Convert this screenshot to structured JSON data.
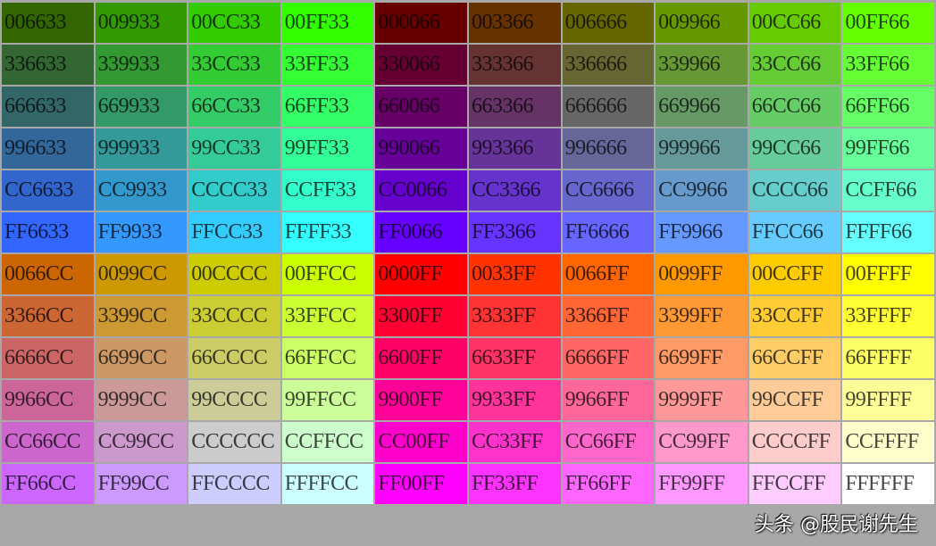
{
  "color_order_displayed": "BGR",
  "rows": [
    [
      "006633",
      "009933",
      "00CC33",
      "00FF33",
      "000066",
      "003366",
      "006666",
      "009966",
      "00CC66",
      "00FF66"
    ],
    [
      "336633",
      "339933",
      "33CC33",
      "33FF33",
      "330066",
      "333366",
      "336666",
      "339966",
      "33CC66",
      "33FF66"
    ],
    [
      "666633",
      "669933",
      "66CC33",
      "66FF33",
      "660066",
      "663366",
      "666666",
      "669966",
      "66CC66",
      "66FF66"
    ],
    [
      "996633",
      "999933",
      "99CC33",
      "99FF33",
      "990066",
      "993366",
      "996666",
      "999966",
      "99CC66",
      "99FF66"
    ],
    [
      "CC6633",
      "CC9933",
      "CCCC33",
      "CCFF33",
      "CC0066",
      "CC3366",
      "CC6666",
      "CC9966",
      "CCCC66",
      "CCFF66"
    ],
    [
      "FF6633",
      "FF9933",
      "FFCC33",
      "FFFF33",
      "FF0066",
      "FF3366",
      "FF6666",
      "FF9966",
      "FFCC66",
      "FFFF66"
    ],
    [
      "0066CC",
      "0099CC",
      "00CCCC",
      "00FFCC",
      "0000FF",
      "0033FF",
      "0066FF",
      "0099FF",
      "00CCFF",
      "00FFFF"
    ],
    [
      "3366CC",
      "3399CC",
      "33CCCC",
      "33FFCC",
      "3300FF",
      "3333FF",
      "3366FF",
      "3399FF",
      "33CCFF",
      "33FFFF"
    ],
    [
      "6666CC",
      "6699CC",
      "66CCCC",
      "66FFCC",
      "6600FF",
      "6633FF",
      "6666FF",
      "6699FF",
      "66CCFF",
      "66FFFF"
    ],
    [
      "9966CC",
      "9999CC",
      "99CCCC",
      "99FFCC",
      "9900FF",
      "9933FF",
      "9966FF",
      "9999FF",
      "99CCFF",
      "99FFFF"
    ],
    [
      "CC66CC",
      "CC99CC",
      "CCCCCC",
      "CCFFCC",
      "CC00FF",
      "CC33FF",
      "CC66FF",
      "CC99FF",
      "CCCCFF",
      "CCFFFF"
    ],
    [
      "FF66CC",
      "FF99CC",
      "FFCCCC",
      "FFFFCC",
      "FF00FF",
      "FF33FF",
      "FF66FF",
      "FF99FF",
      "FFCCFF",
      "FFFFFF"
    ]
  ],
  "watermark": "头条 @股民谢先生"
}
